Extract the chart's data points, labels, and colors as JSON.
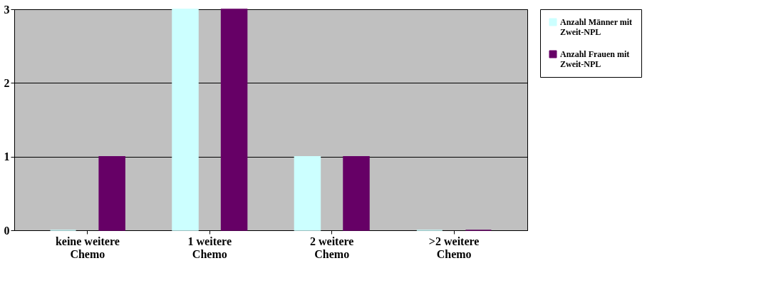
{
  "chart_data": {
    "type": "bar",
    "categories": [
      "keine weitere Chemo",
      "1 weitere Chemo",
      "2 weitere Chemo",
      ">2 weitere Chemo"
    ],
    "series": [
      {
        "name": "Anzahl Männer mit Zweit-NPL",
        "color": "#ccffff",
        "values": [
          0,
          3,
          1,
          0
        ]
      },
      {
        "name": "Anzahl Frauen mit Zweit-NPL",
        "color": "#660066",
        "values": [
          1,
          3,
          1,
          0
        ]
      }
    ],
    "ylim": [
      0,
      3
    ],
    "yticks": [
      0,
      1,
      2,
      3
    ],
    "grid": "y",
    "legend": "right"
  }
}
